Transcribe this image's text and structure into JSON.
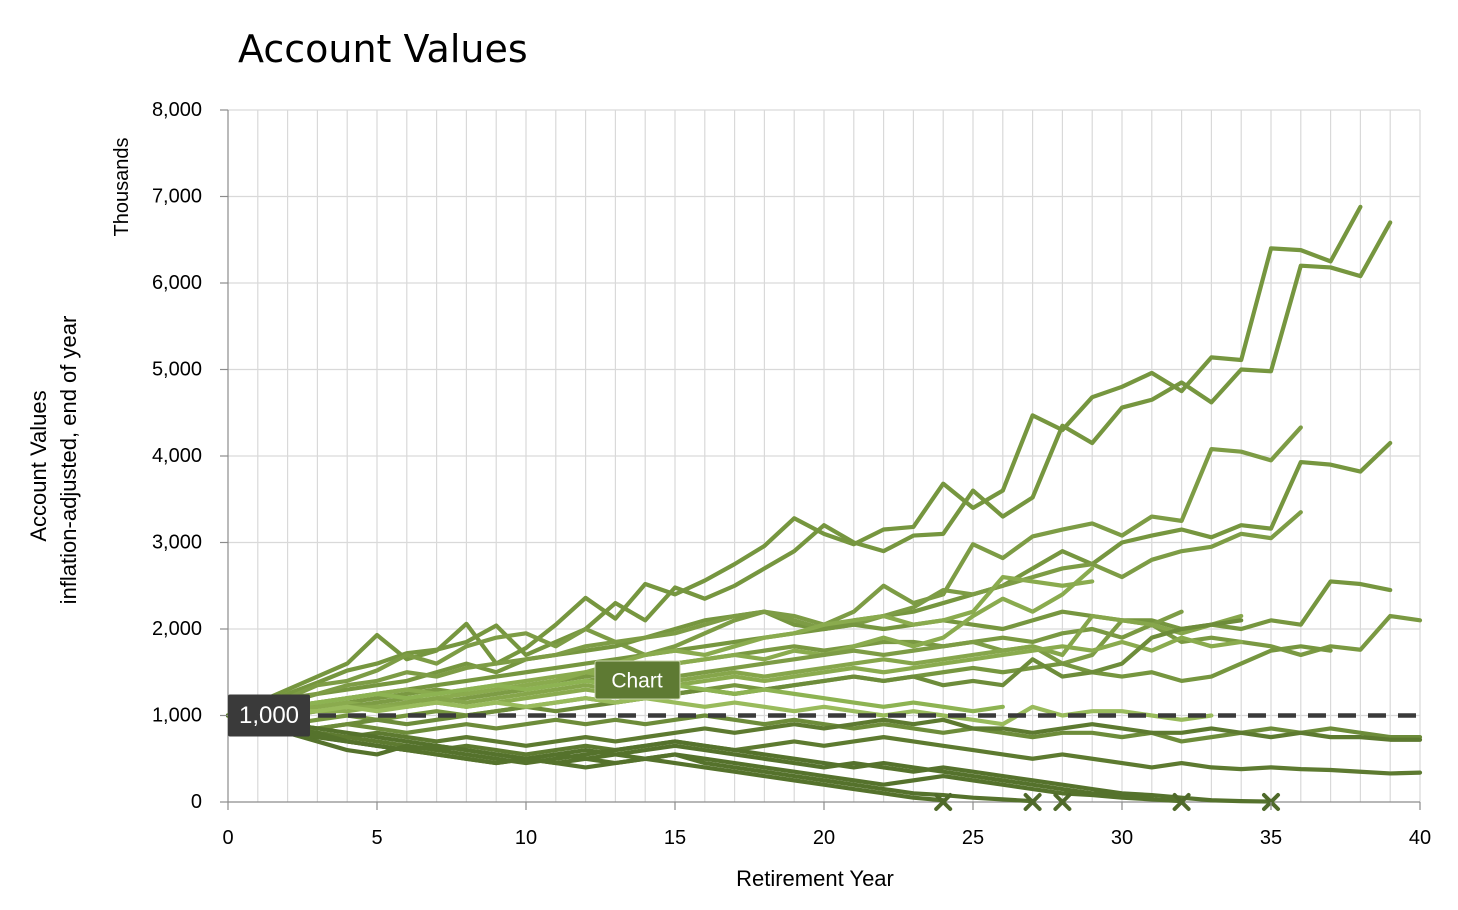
{
  "chart_data": {
    "type": "line",
    "title": "Account Values",
    "xlabel": "Retirement Year",
    "ylabel_line1": "Account Values",
    "ylabel_line2": "inflation-adjusted, end of year",
    "y_units": "Thousands",
    "xlim": [
      0,
      40
    ],
    "ylim": [
      0,
      8000
    ],
    "x_ticks": [
      0,
      5,
      10,
      15,
      20,
      25,
      30,
      35,
      40
    ],
    "x_tick_labels": [
      "0",
      "5",
      "10",
      "15",
      "20",
      "25",
      "30",
      "35",
      "40"
    ],
    "y_ticks": [
      0,
      1000,
      2000,
      3000,
      4000,
      5000,
      6000,
      7000,
      8000
    ],
    "y_tick_labels": [
      "0",
      "1,000",
      "2,000",
      "3,000",
      "4,000",
      "5,000",
      "6,000",
      "7,000",
      "8,000"
    ],
    "grid": true,
    "legend": "none",
    "reference_line": {
      "value": 1000,
      "label": "1,000",
      "style": "dashed",
      "color": "#3a3a3a"
    },
    "floating_label": "Chart",
    "depletion_markers": [
      {
        "x": 24,
        "y": 0
      },
      {
        "x": 27,
        "y": 0
      },
      {
        "x": 28,
        "y": 0
      },
      {
        "x": 32,
        "y": 0
      },
      {
        "x": 35,
        "y": 0
      }
    ],
    "series": [
      {
        "color": "#76963f",
        "values": [
          1000,
          1150,
          1300,
          1450,
          1600,
          1930,
          1650,
          1750,
          2060,
          1600,
          1780,
          2050,
          2360,
          2120,
          2520,
          2400,
          2560,
          2750,
          2960,
          3280,
          3100,
          2980,
          3150,
          3180,
          3680,
          3400,
          3600,
          4470,
          4300,
          4680,
          4800,
          4960,
          4750,
          5140,
          5110,
          6400,
          6380,
          6250,
          6880
        ]
      },
      {
        "color": "#76963f",
        "values": [
          1000,
          1100,
          1250,
          1380,
          1520,
          1600,
          1720,
          1760,
          1850,
          2040,
          1700,
          1850,
          2000,
          2300,
          2100,
          2480,
          2350,
          2500,
          2700,
          2900,
          3200,
          3000,
          2900,
          3080,
          3100,
          3600,
          3300,
          3520,
          4350,
          4150,
          4560,
          4650,
          4850,
          4620,
          5000,
          4980,
          6200,
          6180,
          6080,
          6700
        ]
      },
      {
        "color": "#7d9c45",
        "values": [
          1000,
          1120,
          1200,
          1350,
          1400,
          1520,
          1700,
          1600,
          1800,
          1900,
          1950,
          1800,
          2000,
          1850,
          1700,
          1800,
          1950,
          2100,
          2200,
          2150,
          2050,
          2200,
          2500,
          2300,
          2400,
          2980,
          2820,
          3070,
          3150,
          3220,
          3080,
          3300,
          3250,
          4080,
          4050,
          3950,
          4330
        ]
      },
      {
        "color": "#76963f",
        "values": [
          1000,
          1050,
          1150,
          1250,
          1300,
          1350,
          1400,
          1500,
          1600,
          1500,
          1650,
          1700,
          1750,
          1800,
          1900,
          2000,
          2100,
          2150,
          2200,
          2050,
          2000,
          2100,
          2150,
          2200,
          2300,
          2400,
          2500,
          2700,
          2900,
          2750,
          3000,
          3080,
          3150,
          3060,
          3200,
          3160,
          3930,
          3900,
          3820,
          4150
        ]
      },
      {
        "color": "#7d9c45",
        "values": [
          1000,
          1100,
          1200,
          1250,
          1350,
          1400,
          1500,
          1450,
          1550,
          1600,
          1650,
          1700,
          1800,
          1850,
          1900,
          1950,
          2050,
          2150,
          2200,
          2100,
          2000,
          2050,
          2150,
          2250,
          2450,
          2400,
          2500,
          2600,
          2700,
          2750,
          2600,
          2800,
          2900,
          2950,
          3100,
          3050,
          3350
        ]
      },
      {
        "color": "#76963f",
        "values": [
          1000,
          1050,
          1100,
          1150,
          1200,
          1250,
          1300,
          1350,
          1400,
          1450,
          1500,
          1550,
          1600,
          1650,
          1700,
          1750,
          1800,
          1850,
          1900,
          1950,
          2000,
          2050,
          2000,
          2050,
          2100,
          2050,
          2000,
          2100,
          2200,
          2150,
          2100,
          2100,
          2000,
          2050,
          2000,
          2100,
          2050,
          2550,
          2520,
          2450
        ]
      },
      {
        "color": "#7a9942",
        "values": [
          1000,
          1050,
          1100,
          1100,
          1150,
          1200,
          1250,
          1300,
          1250,
          1300,
          1350,
          1400,
          1450,
          1500,
          1550,
          1600,
          1650,
          1700,
          1750,
          1800,
          1750,
          1800,
          1850,
          1850,
          1800,
          1850,
          1900,
          1850,
          1950,
          2000,
          1900,
          2050,
          1850,
          1900,
          1850,
          1800,
          1700,
          1800,
          1760,
          2150,
          2100
        ]
      },
      {
        "color": "#8aab4e",
        "values": [
          1000,
          1050,
          1100,
          1150,
          1200,
          1250,
          1300,
          1250,
          1300,
          1350,
          1400,
          1450,
          1500,
          1600,
          1700,
          1750,
          1700,
          1800,
          1900,
          1950,
          2050,
          2100,
          2150,
          2050,
          2100,
          2200,
          2600,
          2550,
          2500,
          2550
        ]
      },
      {
        "color": "#8aab4e",
        "values": [
          1000,
          1000,
          1050,
          1100,
          1150,
          1100,
          1150,
          1200,
          1250,
          1300,
          1350,
          1400,
          1500,
          1450,
          1550,
          1600,
          1650,
          1700,
          1650,
          1750,
          1700,
          1800,
          1900,
          1800,
          1900,
          2150,
          2350,
          2200,
          2400,
          2700
        ]
      },
      {
        "color": "#7d9c45",
        "values": [
          1000,
          950,
          1000,
          1050,
          1100,
          1150,
          1200,
          1150,
          1200,
          1250,
          1300,
          1350,
          1400,
          1450,
          1500,
          1450,
          1500,
          1550,
          1600,
          1650,
          1700,
          1750,
          1700,
          1750,
          1800,
          1850,
          1750,
          1800,
          1600,
          1700,
          2100,
          2050,
          2200
        ]
      },
      {
        "color": "#86a64b",
        "values": [
          1000,
          1000,
          1050,
          1050,
          1100,
          1100,
          1150,
          1200,
          1150,
          1200,
          1250,
          1300,
          1350,
          1300,
          1350,
          1400,
          1450,
          1500,
          1450,
          1500,
          1550,
          1600,
          1650,
          1600,
          1650,
          1700,
          1750,
          1800,
          1700,
          2150,
          2100,
          2050,
          1950,
          2050,
          2150
        ]
      },
      {
        "color": "#8aab4e",
        "values": [
          1000,
          1000,
          1000,
          1050,
          1050,
          1100,
          1100,
          1150,
          1100,
          1150,
          1200,
          1250,
          1300,
          1250,
          1300,
          1350,
          1400,
          1450,
          1400,
          1450,
          1500,
          1550,
          1500,
          1550,
          1600,
          1650,
          1700,
          1750,
          1800,
          1750,
          1850,
          1750,
          1900,
          1800,
          1850
        ]
      },
      {
        "color": "#76963f",
        "values": [
          1000,
          950,
          900,
          950,
          1000,
          950,
          1000,
          1050,
          1000,
          1050,
          1100,
          1150,
          1200,
          1150,
          1200,
          1250,
          1300,
          1350,
          1300,
          1350,
          1400,
          1450,
          1400,
          1450,
          1500,
          1550,
          1500,
          1550,
          1600,
          1500,
          1450,
          1500,
          1400,
          1450,
          1600,
          1750,
          1800,
          1750
        ]
      },
      {
        "color": "#6d8c3a",
        "values": [
          1000,
          950,
          900,
          850,
          900,
          950,
          900,
          950,
          1000,
          1050,
          1100,
          1050,
          1100,
          1150,
          1200,
          1250,
          1300,
          1250,
          1300,
          1350,
          1400,
          1450,
          1400,
          1450,
          1350,
          1400,
          1350,
          1650,
          1450,
          1500,
          1600,
          1900,
          2000,
          2050,
          2100
        ]
      },
      {
        "color": "#8db352",
        "values": [
          1000,
          1050,
          1100,
          1150,
          1200,
          1250,
          1200,
          1250,
          1300,
          1350,
          1300,
          1350,
          1400,
          1350,
          1300,
          1350,
          1300,
          1250,
          1300,
          1250,
          1200,
          1150,
          1100,
          1150,
          1100,
          1050,
          1100
        ]
      },
      {
        "color": "#99bb5c",
        "values": [
          1000,
          1000,
          1050,
          1050,
          1100,
          1050,
          1100,
          1150,
          1100,
          1150,
          1100,
          1150,
          1200,
          1150,
          1200,
          1150,
          1100,
          1150,
          1100,
          1050,
          1100,
          1050,
          1000,
          1050,
          1000,
          950,
          900,
          1100,
          1000,
          1050,
          1050,
          1000,
          950,
          1000
        ]
      },
      {
        "color": "#6d8c3a",
        "values": [
          1000,
          950,
          900,
          850,
          900,
          850,
          800,
          850,
          900,
          850,
          900,
          950,
          900,
          950,
          900,
          950,
          1000,
          950,
          900,
          950,
          900,
          850,
          900,
          850,
          800,
          850,
          800,
          750,
          800,
          800,
          750,
          800,
          700,
          750,
          800,
          850,
          800,
          850,
          800,
          750,
          750
        ]
      },
      {
        "color": "#5d7a30",
        "values": [
          1000,
          900,
          850,
          800,
          750,
          800,
          750,
          700,
          750,
          700,
          650,
          700,
          750,
          700,
          750,
          800,
          850,
          800,
          850,
          900,
          850,
          900,
          950,
          900,
          950,
          850,
          850,
          800,
          850,
          900,
          850,
          800,
          800,
          850,
          800,
          750,
          800,
          750,
          750,
          720,
          720
        ]
      },
      {
        "color": "#5d7a30",
        "values": [
          1000,
          950,
          850,
          800,
          750,
          700,
          650,
          600,
          650,
          600,
          550,
          600,
          650,
          600,
          650,
          700,
          650,
          600,
          650,
          700,
          650,
          700,
          750,
          700,
          650,
          600,
          550,
          500,
          550,
          500,
          450,
          400,
          450,
          400,
          380,
          400,
          380,
          370,
          350,
          330,
          340
        ]
      },
      {
        "color": "#55722c",
        "values": [
          1000,
          900,
          800,
          700,
          600,
          550,
          650,
          600,
          550,
          500,
          450,
          500,
          550,
          600,
          650,
          700,
          650,
          600,
          550,
          500,
          450,
          400,
          450,
          400,
          350,
          300,
          250,
          200,
          150,
          100,
          80,
          50
        ]
      },
      {
        "color": "#55722c",
        "values": [
          1000,
          900,
          800,
          750,
          700,
          650,
          600,
          550,
          500,
          450,
          500,
          450,
          500,
          550,
          500,
          450,
          400,
          350,
          300,
          250,
          200,
          150,
          100,
          50,
          20
        ]
      },
      {
        "color": "#55722c",
        "values": [
          1000,
          950,
          850,
          800,
          700,
          650,
          600,
          550,
          500,
          450,
          500,
          550,
          500,
          450,
          500,
          550,
          450,
          400,
          350,
          300,
          250,
          200,
          150,
          100,
          80,
          50,
          30,
          10
        ]
      },
      {
        "color": "#55722c",
        "values": [
          1000,
          950,
          900,
          850,
          800,
          750,
          700,
          650,
          600,
          550,
          500,
          550,
          600,
          550,
          600,
          650,
          600,
          550,
          500,
          450,
          400,
          450,
          400,
          350,
          400,
          350,
          300,
          250,
          200,
          150,
          100,
          80,
          50,
          20,
          10,
          5
        ]
      },
      {
        "color": "#55722c",
        "values": [
          1000,
          900,
          850,
          750,
          700,
          650,
          600,
          650,
          600,
          550,
          500,
          450,
          400,
          450,
          500,
          550,
          500,
          450,
          400,
          350,
          300,
          250,
          200,
          250,
          300,
          250,
          200,
          150,
          100,
          80,
          50,
          30,
          10
        ]
      }
    ]
  }
}
